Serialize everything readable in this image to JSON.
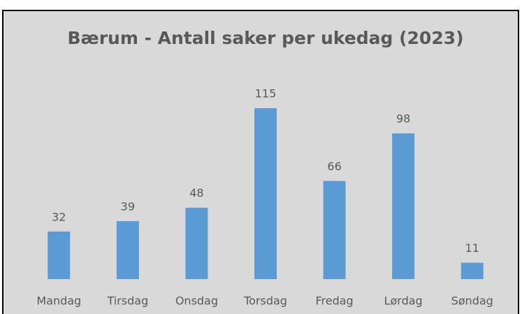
{
  "chart_data": {
    "type": "bar",
    "title": "Bærum - Antall saker per ukedag (2023)",
    "categories": [
      "Mandag",
      "Tirsdag",
      "Onsdag",
      "Torsdag",
      "Fredag",
      "Lørdag",
      "Søndag"
    ],
    "values": [
      32,
      39,
      48,
      115,
      66,
      98,
      11
    ],
    "color": "#5b9bd5"
  }
}
